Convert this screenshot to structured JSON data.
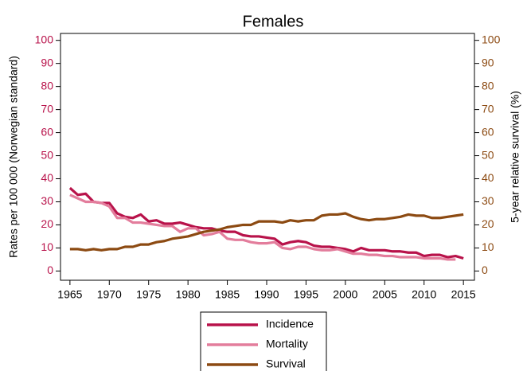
{
  "chart_data": {
    "type": "line",
    "title": "Females",
    "ylabel": "Rates per 100 000 (Norwegian standard)",
    "y2label": "5-year relative survival (%)",
    "x": [
      1965,
      1966,
      1967,
      1968,
      1969,
      1970,
      1971,
      1972,
      1973,
      1974,
      1975,
      1976,
      1977,
      1978,
      1979,
      1980,
      1981,
      1982,
      1983,
      1984,
      1985,
      1986,
      1987,
      1988,
      1989,
      1990,
      1991,
      1992,
      1993,
      1994,
      1995,
      1996,
      1997,
      1998,
      1999,
      2000,
      2001,
      2002,
      2003,
      2004,
      2005,
      2006,
      2007,
      2008,
      2009,
      2010,
      2011,
      2012,
      2013,
      2014,
      2015
    ],
    "series": [
      {
        "name": "Incidence",
        "color": "#b8124a",
        "axis": "y",
        "values": [
          36,
          33,
          33.5,
          30,
          29.5,
          29.5,
          25,
          23.5,
          23,
          24.5,
          21.5,
          22,
          20.5,
          20.5,
          21,
          20,
          19,
          18.5,
          18.5,
          17.5,
          17,
          17,
          15.5,
          15,
          15,
          14.5,
          14,
          11.5,
          12.5,
          13,
          12.5,
          11,
          10.5,
          10.5,
          10,
          9.5,
          8.5,
          10,
          9,
          9,
          9,
          8.5,
          8.5,
          8,
          8,
          6.5,
          7,
          7,
          6,
          6.5,
          5.5
        ]
      },
      {
        "name": "Mortality",
        "color": "#e37d9c",
        "axis": "y",
        "values": [
          33,
          31.5,
          30,
          30,
          29.5,
          28,
          23,
          23,
          21,
          21,
          20.5,
          20,
          19.5,
          19.5,
          17,
          18.5,
          18.5,
          15.5,
          16,
          17,
          14,
          13.5,
          13.5,
          12.5,
          12,
          12,
          12.5,
          10,
          9.5,
          10.5,
          10.5,
          9.5,
          9,
          9,
          9.5,
          8.5,
          7.5,
          7.5,
          7,
          7,
          6.5,
          6.5,
          6,
          6,
          6,
          5.5,
          5.5,
          5.5,
          5,
          5,
          null
        ]
      },
      {
        "name": "Survival",
        "color": "#8c4a12",
        "axis": "y2",
        "values": [
          9.5,
          9.5,
          9,
          9.5,
          9,
          9.5,
          9.5,
          10.5,
          10.5,
          11.5,
          11.5,
          12.5,
          13,
          14,
          14.5,
          15,
          16,
          17,
          17.5,
          18,
          19,
          19.5,
          20,
          20,
          21.5,
          21.5,
          21.5,
          21,
          22,
          21.5,
          22,
          22,
          24,
          24.5,
          24.5,
          25,
          23.5,
          22.5,
          22,
          22.5,
          22.5,
          23,
          23.5,
          24.5,
          24,
          24,
          23,
          23,
          23.5,
          24,
          24.5
        ]
      }
    ],
    "xlim": [
      1963.8,
      2016.4
    ],
    "xticks": [
      1965,
      1970,
      1975,
      1980,
      1985,
      1990,
      1995,
      2000,
      2005,
      2010,
      2015
    ],
    "ylim": [
      -4,
      103
    ],
    "yticks": [
      0,
      10,
      20,
      30,
      40,
      50,
      60,
      70,
      80,
      90,
      100
    ],
    "y2lim": [
      -4,
      103
    ],
    "y2ticks": [
      0,
      10,
      20,
      30,
      40,
      50,
      60,
      70,
      80,
      90,
      100
    ],
    "ytick_color": "#b8124a",
    "y2tick_color": "#8c4a12",
    "grid": false,
    "legend": "bottom"
  }
}
